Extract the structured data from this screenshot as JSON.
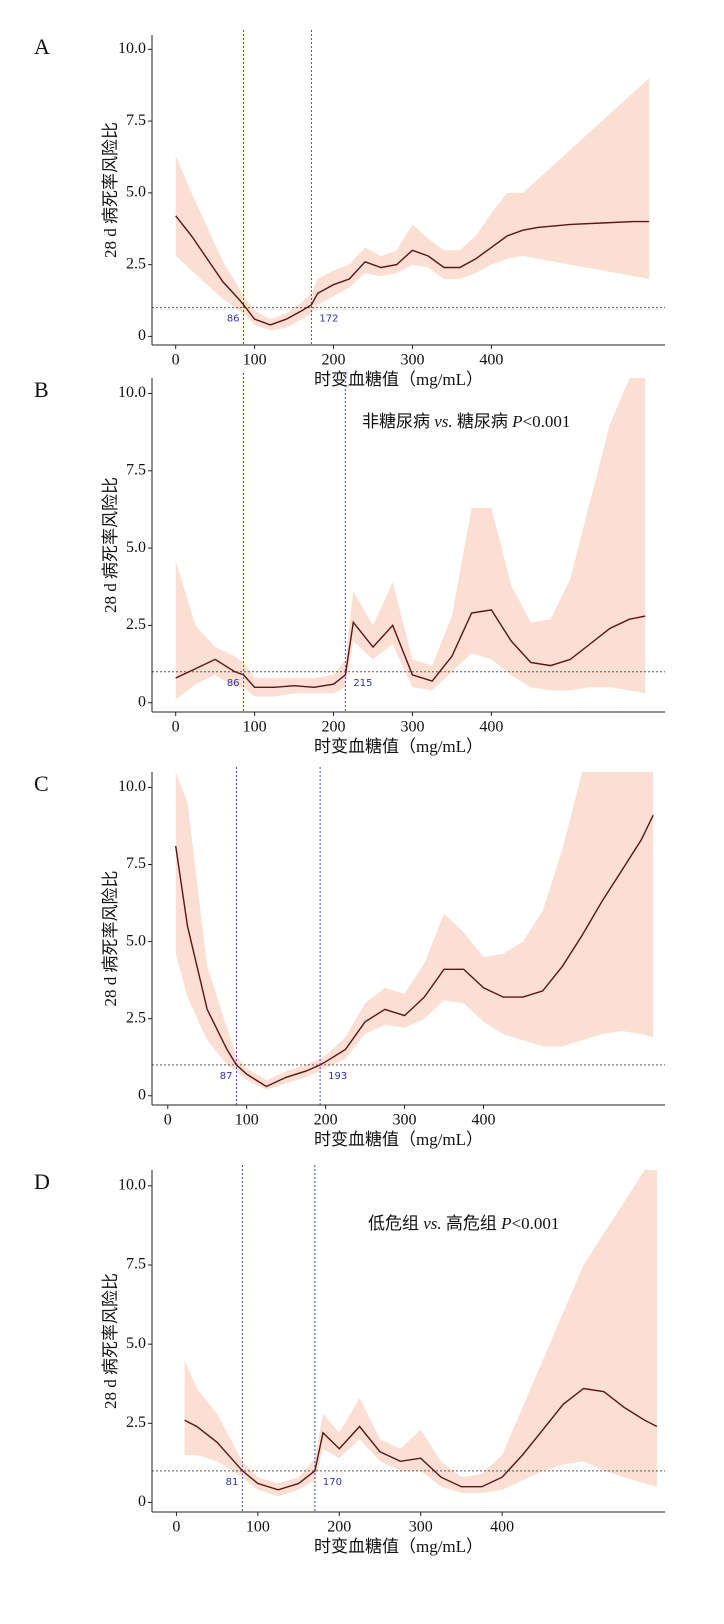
{
  "chart_data": [
    {
      "type": "line",
      "panel_label": "A",
      "y_label": "28 d 病死率风险比",
      "x_label": "时变血糖值（mg/mL）",
      "xlim": [
        -30,
        620
      ],
      "ylim": [
        -0.3,
        10.5
      ],
      "xticks": [
        0,
        100,
        200,
        300,
        400
      ],
      "yticks": [
        0,
        2.5,
        {
          "value": 5,
          "label": "5.0"
        },
        7.5,
        {
          "value": 10,
          "label": "10.0"
        }
      ],
      "reference_y": 1,
      "cutoffs": [
        86,
        172
      ],
      "line_color": "#5a1414",
      "band_color": "#fbdfd2",
      "x": [
        0,
        20,
        40,
        60,
        80,
        86,
        100,
        120,
        140,
        160,
        172,
        180,
        200,
        220,
        240,
        260,
        280,
        300,
        320,
        340,
        360,
        380,
        400,
        420,
        440,
        460,
        480,
        500,
        540,
        580,
        600
      ],
      "values": [
        4.2,
        3.5,
        2.7,
        1.9,
        1.3,
        1.1,
        0.6,
        0.4,
        0.6,
        0.9,
        1.1,
        1.5,
        1.8,
        2.0,
        2.6,
        2.4,
        2.5,
        3.0,
        2.8,
        2.4,
        2.4,
        2.7,
        3.1,
        3.5,
        3.7,
        3.8,
        3.85,
        3.9,
        3.95,
        4.0,
        4.0
      ],
      "lower": [
        2.8,
        2.3,
        1.8,
        1.3,
        0.9,
        0.8,
        0.4,
        0.2,
        0.3,
        0.6,
        0.8,
        1.1,
        1.4,
        1.7,
        2.2,
        2.1,
        2.2,
        2.5,
        2.4,
        2.0,
        2.0,
        2.2,
        2.5,
        2.7,
        2.8,
        2.7,
        2.6,
        2.5,
        2.3,
        2.1,
        2.0
      ],
      "upper": [
        6.3,
        5.0,
        3.8,
        2.6,
        1.7,
        1.4,
        0.9,
        0.6,
        0.8,
        1.2,
        1.5,
        2.0,
        2.3,
        2.5,
        3.1,
        2.8,
        3.0,
        3.9,
        3.4,
        3.0,
        3.0,
        3.5,
        4.3,
        5.0,
        5.0,
        5.5,
        6.0,
        6.5,
        7.5,
        8.5,
        9.0
      ]
    },
    {
      "type": "line",
      "panel_label": "B",
      "y_label": "28 d 病死率风险比",
      "x_label": "时变血糖值（mg/mL）",
      "annotation": [
        "非糖尿病 ",
        "vs.",
        " 糖尿病 ",
        "P",
        "<0.001"
      ],
      "xlim": [
        -30,
        620
      ],
      "ylim": [
        -0.3,
        10.5
      ],
      "xticks": [
        0,
        100,
        200,
        300,
        400
      ],
      "yticks": [
        0,
        2.5,
        {
          "value": 5,
          "label": "5.0"
        },
        7.5,
        {
          "value": 10,
          "label": "10.0"
        }
      ],
      "reference_y": 1,
      "cutoffs": [
        86,
        215
      ],
      "line_color": "#5a1414",
      "band_color": "#fbdfd2",
      "x": [
        0,
        25,
        50,
        75,
        86,
        100,
        125,
        150,
        175,
        200,
        215,
        225,
        250,
        275,
        300,
        325,
        350,
        375,
        400,
        425,
        450,
        475,
        500,
        525,
        550,
        575,
        595
      ],
      "values": [
        0.8,
        1.1,
        1.4,
        1.0,
        0.9,
        0.5,
        0.5,
        0.55,
        0.5,
        0.6,
        0.9,
        2.6,
        1.8,
        2.5,
        0.9,
        0.7,
        1.5,
        2.9,
        3.0,
        2.0,
        1.3,
        1.2,
        1.4,
        1.9,
        2.4,
        2.7,
        2.8
      ],
      "lower": [
        0.1,
        0.6,
        0.9,
        0.5,
        0.5,
        0.2,
        0.2,
        0.3,
        0.3,
        0.3,
        0.5,
        2.0,
        1.4,
        1.9,
        0.5,
        0.4,
        1.0,
        1.6,
        1.4,
        0.9,
        0.5,
        0.4,
        0.4,
        0.5,
        0.5,
        0.4,
        0.3
      ],
      "upper": [
        4.6,
        2.5,
        1.8,
        1.5,
        1.3,
        0.8,
        0.8,
        0.8,
        0.8,
        0.9,
        1.4,
        3.6,
        2.5,
        3.9,
        1.4,
        1.2,
        2.8,
        6.3,
        6.3,
        3.8,
        2.6,
        2.7,
        4.0,
        6.5,
        9.0,
        10.5,
        10.5
      ]
    },
    {
      "type": "line",
      "panel_label": "C",
      "y_label": "28 d 病死率风险比",
      "x_label": "时变血糖值（mg/mL）",
      "xlim": [
        -20,
        630
      ],
      "ylim": [
        -0.3,
        10.5
      ],
      "xticks": [
        0,
        100,
        200,
        300,
        400
      ],
      "yticks": [
        0,
        2.5,
        {
          "value": 5,
          "label": "5.0"
        },
        7.5,
        {
          "value": 10,
          "label": "10.0"
        }
      ],
      "reference_y": 1,
      "cutoffs": [
        87,
        193
      ],
      "line_color": "#5a1414",
      "band_color": "#fbdfd2",
      "x": [
        10,
        25,
        50,
        75,
        87,
        100,
        125,
        150,
        175,
        193,
        200,
        225,
        250,
        275,
        300,
        325,
        350,
        375,
        400,
        425,
        450,
        475,
        500,
        525,
        550,
        575,
        600,
        615
      ],
      "values": [
        8.1,
        5.5,
        2.8,
        1.5,
        1.0,
        0.7,
        0.3,
        0.6,
        0.8,
        1.0,
        1.1,
        1.5,
        2.4,
        2.8,
        2.6,
        3.2,
        4.1,
        4.1,
        3.5,
        3.2,
        3.2,
        3.4,
        4.2,
        5.2,
        6.3,
        7.3,
        8.3,
        9.1
      ],
      "lower": [
        4.6,
        3.2,
        1.8,
        1.0,
        0.8,
        0.5,
        0.2,
        0.4,
        0.6,
        0.8,
        0.9,
        1.2,
        2.0,
        2.3,
        2.2,
        2.5,
        3.1,
        3.0,
        2.4,
        2.0,
        1.8,
        1.6,
        1.6,
        1.8,
        2.0,
        2.1,
        2.0,
        1.9
      ],
      "upper": [
        10.5,
        9.5,
        4.2,
        2.2,
        1.3,
        0.9,
        0.5,
        0.8,
        1.0,
        1.2,
        1.3,
        1.9,
        3.0,
        3.5,
        3.3,
        4.3,
        5.9,
        5.3,
        4.5,
        4.6,
        5.0,
        6.0,
        8.0,
        10.5,
        10.5,
        10.5,
        10.5,
        10.5
      ]
    },
    {
      "type": "line",
      "panel_label": "D",
      "y_label": "28 d 病死率风险比",
      "x_label": "时变血糖值（mg/mL）",
      "annotation": [
        "低危组 ",
        "vs.",
        " 高危组 ",
        "P",
        "<0.001"
      ],
      "xlim": [
        -30,
        600
      ],
      "ylim": [
        -0.3,
        10.5
      ],
      "xticks": [
        0,
        100,
        200,
        300,
        400
      ],
      "yticks": [
        0,
        2.5,
        {
          "value": 5,
          "label": "5.0"
        },
        7.5,
        {
          "value": 10,
          "label": "10.0"
        }
      ],
      "reference_y": 1,
      "cutoffs": [
        81,
        170
      ],
      "line_color": "#5a1414",
      "band_color": "#fbdfd2",
      "x": [
        10,
        25,
        50,
        81,
        100,
        125,
        150,
        170,
        180,
        200,
        225,
        250,
        275,
        300,
        325,
        350,
        375,
        400,
        425,
        450,
        475,
        500,
        525,
        550,
        575,
        590
      ],
      "values": [
        2.6,
        2.4,
        1.9,
        1.0,
        0.6,
        0.4,
        0.6,
        1.0,
        2.2,
        1.7,
        2.4,
        1.6,
        1.3,
        1.4,
        0.8,
        0.5,
        0.5,
        0.8,
        1.5,
        2.3,
        3.1,
        3.6,
        3.5,
        3.0,
        2.6,
        2.4
      ],
      "lower": [
        1.5,
        1.5,
        1.3,
        0.8,
        0.4,
        0.2,
        0.4,
        0.7,
        1.7,
        1.4,
        2.0,
        1.3,
        1.0,
        1.0,
        0.5,
        0.3,
        0.3,
        0.4,
        0.7,
        1.0,
        1.2,
        1.3,
        1.0,
        0.8,
        0.6,
        0.5
      ],
      "upper": [
        4.5,
        3.6,
        2.8,
        1.3,
        0.8,
        0.6,
        0.8,
        1.4,
        2.8,
        2.2,
        3.3,
        2.0,
        1.7,
        2.3,
        1.3,
        0.8,
        0.9,
        1.5,
        3.0,
        4.5,
        6.0,
        7.5,
        8.5,
        9.5,
        10.5,
        10.5
      ]
    }
  ]
}
